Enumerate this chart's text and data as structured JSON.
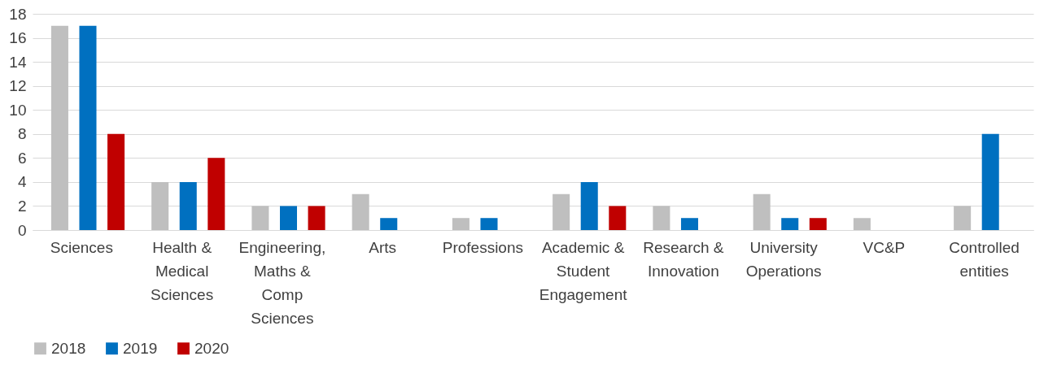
{
  "chart_data": {
    "type": "bar",
    "categories": [
      "Sciences",
      "Health & Medical Sciences",
      "Engineering, Maths & Comp Sciences",
      "Arts",
      "Professions",
      "Academic & Student Engagement",
      "Research & Innovation",
      "University Operations",
      "VC&P",
      "Controlled entities"
    ],
    "series": [
      {
        "name": "2018",
        "color": "#bfbfbf",
        "values": [
          17,
          4,
          2,
          3,
          1,
          3,
          2,
          3,
          1,
          2
        ]
      },
      {
        "name": "2019",
        "color": "#0070c0",
        "values": [
          17,
          4,
          2,
          1,
          1,
          4,
          1,
          1,
          0,
          8
        ]
      },
      {
        "name": "2020",
        "color": "#c00000",
        "values": [
          8,
          6,
          2,
          0,
          0,
          2,
          0,
          1,
          0,
          0
        ]
      }
    ],
    "ylim": [
      0,
      18
    ],
    "yticks": [
      0,
      2,
      4,
      6,
      8,
      10,
      12,
      14,
      16,
      18
    ],
    "grid": "y",
    "legend": "bottom"
  }
}
